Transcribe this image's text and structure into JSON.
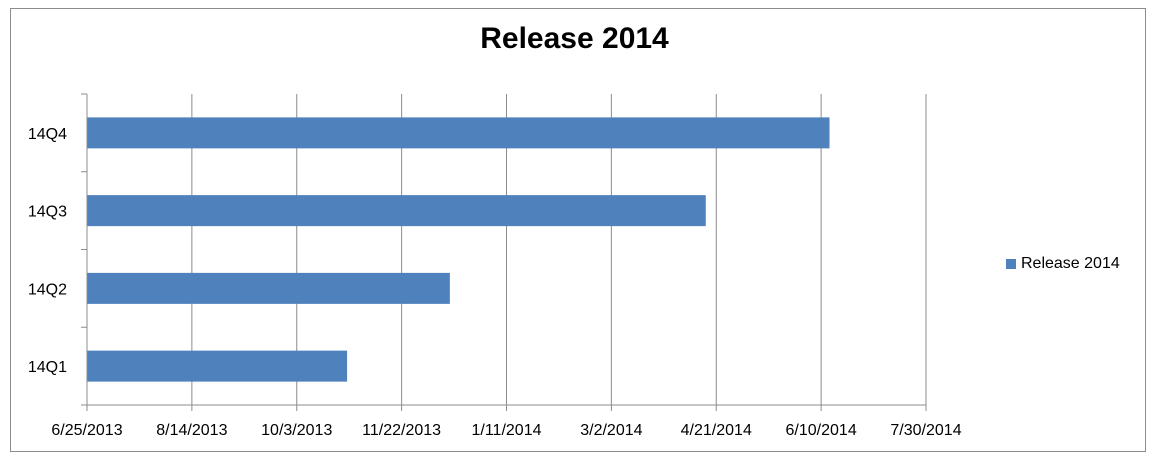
{
  "chart_data": {
    "type": "bar",
    "orientation": "horizontal",
    "title": "Release 2014",
    "categories": [
      "14Q1",
      "14Q2",
      "14Q3",
      "14Q4"
    ],
    "series": [
      {
        "name": "Release 2014",
        "color": "#4f81bd",
        "values": [
          "2013-10-27",
          "2013-12-15",
          "2014-04-16",
          "2014-06-14"
        ]
      }
    ],
    "x_ticks": [
      "6/25/2013",
      "8/14/2013",
      "10/3/2013",
      "11/22/2013",
      "1/11/2014",
      "3/2/2014",
      "4/21/2014",
      "6/10/2014",
      "7/30/2014"
    ],
    "xlim": [
      "2013-06-25",
      "2014-07-30"
    ],
    "grid": "vertical",
    "legend": "right"
  }
}
